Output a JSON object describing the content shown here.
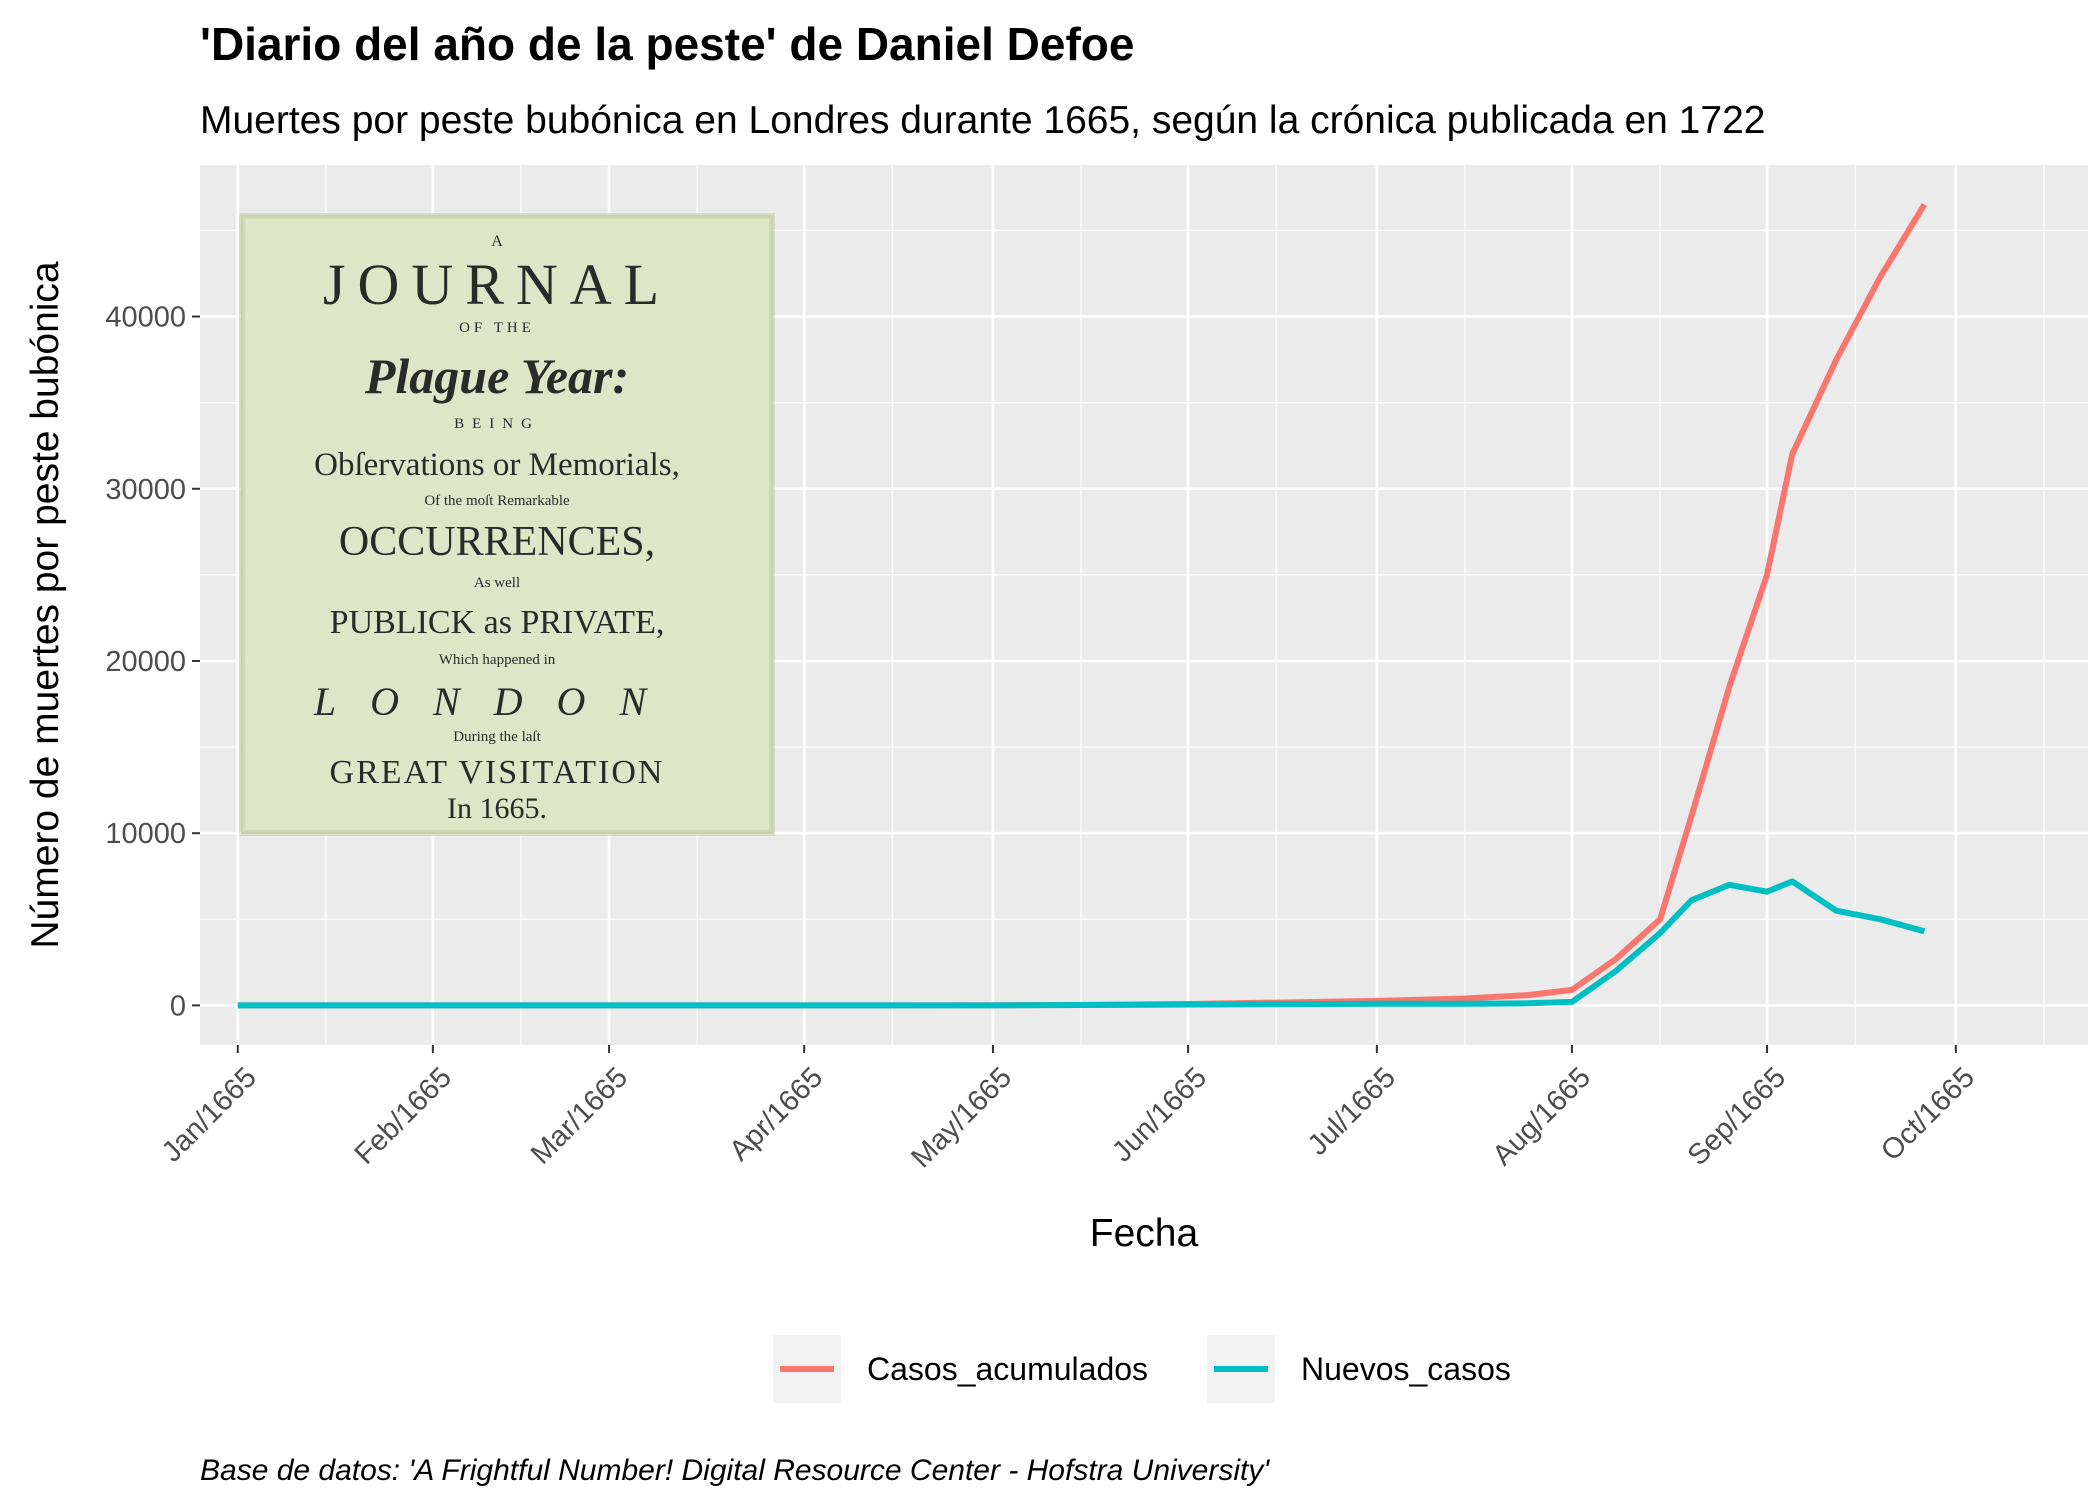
{
  "chart_data": {
    "type": "line",
    "title": "'Diario del año de la peste' de Daniel Defoe",
    "subtitle": "Muertes por peste bubónica en Londres durante 1665, según la crónica publicada en 1722",
    "xlabel": "Fecha",
    "ylabel": "Número de muertes por peste bubónica",
    "caption": "Base de datos: 'A Frightful Number! Digital Resource Center - Hofstra University'",
    "x_ticks": [
      "Jan/1665",
      "Feb/1665",
      "Mar/1665",
      "Apr/1665",
      "May/1665",
      "Jun/1665",
      "Jul/1665",
      "Aug/1665",
      "Sep/1665",
      "Oct/1665"
    ],
    "y_ticks": [
      0,
      10000,
      20000,
      30000,
      40000
    ],
    "ylim": [
      -2300,
      48800
    ],
    "xlim": [
      "1664-12-26",
      "1665-10-22"
    ],
    "grid": true,
    "legend_position": "bottom",
    "series": [
      {
        "name": "Casos_acumulados",
        "color": "#F8766D",
        "points": [
          [
            "1665-01-01",
            0
          ],
          [
            "1665-01-15",
            0
          ],
          [
            "1665-02-01",
            0
          ],
          [
            "1665-02-15",
            0
          ],
          [
            "1665-03-01",
            0
          ],
          [
            "1665-03-15",
            0
          ],
          [
            "1665-04-01",
            0
          ],
          [
            "1665-04-15",
            0
          ],
          [
            "1665-05-01",
            10
          ],
          [
            "1665-05-15",
            20
          ],
          [
            "1665-06-01",
            80
          ],
          [
            "1665-06-15",
            160
          ],
          [
            "1665-07-01",
            260
          ],
          [
            "1665-07-15",
            400
          ],
          [
            "1665-07-25",
            600
          ],
          [
            "1665-08-01",
            900
          ],
          [
            "1665-08-08",
            2700
          ],
          [
            "1665-08-15",
            5000
          ],
          [
            "1665-08-20",
            11000
          ],
          [
            "1665-08-26",
            18500
          ],
          [
            "1665-09-01",
            25000
          ],
          [
            "1665-09-05",
            32000
          ],
          [
            "1665-09-12",
            37500
          ],
          [
            "1665-09-19",
            42300
          ],
          [
            "1665-09-26",
            46500
          ]
        ]
      },
      {
        "name": "Nuevos_casos",
        "color": "#00BFC4",
        "points": [
          [
            "1665-01-01",
            0
          ],
          [
            "1665-01-15",
            0
          ],
          [
            "1665-02-01",
            0
          ],
          [
            "1665-02-15",
            0
          ],
          [
            "1665-03-01",
            0
          ],
          [
            "1665-03-15",
            0
          ],
          [
            "1665-04-01",
            0
          ],
          [
            "1665-04-15",
            0
          ],
          [
            "1665-05-01",
            0
          ],
          [
            "1665-05-15",
            20
          ],
          [
            "1665-06-01",
            50
          ],
          [
            "1665-06-15",
            70
          ],
          [
            "1665-07-01",
            90
          ],
          [
            "1665-07-15",
            100
          ],
          [
            "1665-07-25",
            120
          ],
          [
            "1665-08-01",
            200
          ],
          [
            "1665-08-08",
            2000
          ],
          [
            "1665-08-15",
            4200
          ],
          [
            "1665-08-20",
            6100
          ],
          [
            "1665-08-26",
            7000
          ],
          [
            "1665-09-01",
            6600
          ],
          [
            "1665-09-05",
            7200
          ],
          [
            "1665-09-12",
            5500
          ],
          [
            "1665-09-19",
            5000
          ],
          [
            "1665-09-26",
            4300
          ]
        ]
      }
    ]
  },
  "inset": {
    "lines": [
      "A",
      "JOURNAL",
      "OF THE",
      "Plague Year:",
      "BEING",
      "Obſervations or Memorials,",
      "Of the moſt Remarkable",
      "OCCURRENCES,",
      "As well",
      "PUBLICK as PRIVATE,",
      "Which happened in",
      "LONDON",
      "During the laſt",
      "GREAT VISITATION",
      "In 1665."
    ]
  }
}
